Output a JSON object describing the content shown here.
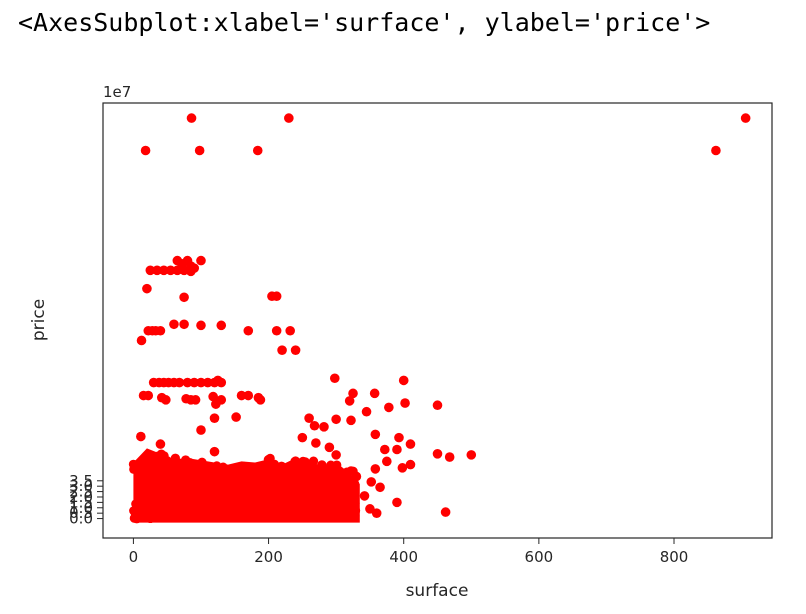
{
  "output_repr": "<AxesSubplot:xlabel='surface', ylabel='price'>",
  "chart_data": {
    "type": "scatter",
    "xlabel": "surface",
    "ylabel": "price",
    "y_offset_label": "1e7",
    "xlim": [
      -45,
      945
    ],
    "ylim": [
      -1.8,
      38.5
    ],
    "y_unit_multiplier": 10000000,
    "x_ticks": [
      0,
      200,
      400,
      600,
      800
    ],
    "y_ticks": [
      0.0,
      0.5,
      1.0,
      1.5,
      2.0,
      2.5,
      3.0,
      3.5
    ],
    "y_tick_labels": [
      "0.0",
      "0.5",
      "1.0",
      "1.5",
      "2.0",
      "2.5",
      "3.0",
      "3.5"
    ],
    "marker_color": "#ff0000",
    "grid": false,
    "points": [
      [
        18,
        34.1
      ],
      [
        86,
        37.1
      ],
      [
        98,
        34.1
      ],
      [
        184,
        34.1
      ],
      [
        230,
        37.1
      ],
      [
        862,
        34.1
      ],
      [
        906,
        37.1
      ],
      [
        65,
        23.9
      ],
      [
        72,
        23.6
      ],
      [
        80,
        23.9
      ],
      [
        100,
        23.9
      ],
      [
        85,
        23.4
      ],
      [
        90,
        23.2
      ],
      [
        25,
        23.0
      ],
      [
        35,
        23.0
      ],
      [
        45,
        23.0
      ],
      [
        55,
        23.0
      ],
      [
        65,
        23.0
      ],
      [
        75,
        23.0
      ],
      [
        85,
        22.9
      ],
      [
        20,
        21.3
      ],
      [
        75,
        20.5
      ],
      [
        205,
        20.6
      ],
      [
        212,
        20.6
      ],
      [
        22,
        17.4
      ],
      [
        28,
        17.4
      ],
      [
        33,
        17.4
      ],
      [
        40,
        17.4
      ],
      [
        60,
        18.0
      ],
      [
        75,
        18.0
      ],
      [
        100,
        17.9
      ],
      [
        130,
        17.9
      ],
      [
        170,
        17.4
      ],
      [
        212,
        17.4
      ],
      [
        232,
        17.4
      ],
      [
        12,
        16.5
      ],
      [
        220,
        15.6
      ],
      [
        240,
        15.6
      ],
      [
        298,
        13.0
      ],
      [
        325,
        11.6
      ],
      [
        357,
        11.6
      ],
      [
        400,
        12.8
      ],
      [
        450,
        10.5
      ],
      [
        320,
        10.9
      ],
      [
        402,
        10.7
      ],
      [
        378,
        10.3
      ],
      [
        345,
        9.9
      ],
      [
        300,
        9.2
      ],
      [
        282,
        8.5
      ],
      [
        322,
        9.1
      ],
      [
        358,
        7.8
      ],
      [
        393,
        7.5
      ],
      [
        410,
        6.9
      ],
      [
        372,
        6.4
      ],
      [
        450,
        6.0
      ],
      [
        500,
        5.9
      ],
      [
        468,
        5.7
      ],
      [
        410,
        5.0
      ],
      [
        398,
        4.7
      ],
      [
        352,
        3.4
      ],
      [
        365,
        2.9
      ],
      [
        310,
        2.4
      ],
      [
        342,
        2.1
      ],
      [
        325,
        0.7
      ],
      [
        285,
        0.4
      ],
      [
        360,
        0.5
      ],
      [
        462,
        0.6
      ],
      [
        390,
        1.5
      ],
      [
        350,
        0.9
      ],
      [
        358,
        4.6
      ],
      [
        390,
        6.4
      ],
      [
        375,
        5.3
      ],
      [
        15,
        11.4
      ],
      [
        22,
        11.4
      ],
      [
        30,
        12.6
      ],
      [
        38,
        12.6
      ],
      [
        45,
        12.6
      ],
      [
        52,
        12.6
      ],
      [
        60,
        12.6
      ],
      [
        68,
        12.6
      ],
      [
        80,
        12.6
      ],
      [
        90,
        12.6
      ],
      [
        100,
        12.6
      ],
      [
        110,
        12.6
      ],
      [
        120,
        12.6
      ],
      [
        125,
        12.8
      ],
      [
        130,
        12.6
      ],
      [
        42,
        11.2
      ],
      [
        48,
        11.0
      ],
      [
        78,
        11.1
      ],
      [
        85,
        11.0
      ],
      [
        92,
        11.0
      ],
      [
        118,
        11.3
      ],
      [
        130,
        11.0
      ],
      [
        160,
        11.4
      ],
      [
        170,
        11.4
      ],
      [
        188,
        11.0
      ],
      [
        185,
        11.2
      ],
      [
        122,
        10.6
      ],
      [
        11,
        7.6
      ],
      [
        100,
        8.2
      ],
      [
        120,
        9.3
      ],
      [
        152,
        9.4
      ],
      [
        40,
        6.9
      ],
      [
        120,
        6.2
      ],
      [
        260,
        9.3
      ],
      [
        268,
        8.6
      ],
      [
        250,
        7.5
      ],
      [
        270,
        7.0
      ],
      [
        290,
        6.6
      ],
      [
        300,
        5.9
      ],
      [
        280,
        4.5
      ],
      [
        322,
        4.4
      ],
      [
        330,
        3.9
      ],
      [
        316,
        3.0
      ],
      [
        296,
        2.8
      ],
      [
        305,
        1.9
      ],
      [
        298,
        1.0
      ],
      [
        240,
        0.5
      ],
      [
        265,
        0.7
      ],
      [
        10,
        0.1
      ],
      [
        5,
        0.0
      ],
      [
        3,
        0.5
      ],
      [
        200,
        0.2
      ],
      [
        150,
        0.1
      ],
      [
        80,
        0.2
      ]
    ]
  }
}
